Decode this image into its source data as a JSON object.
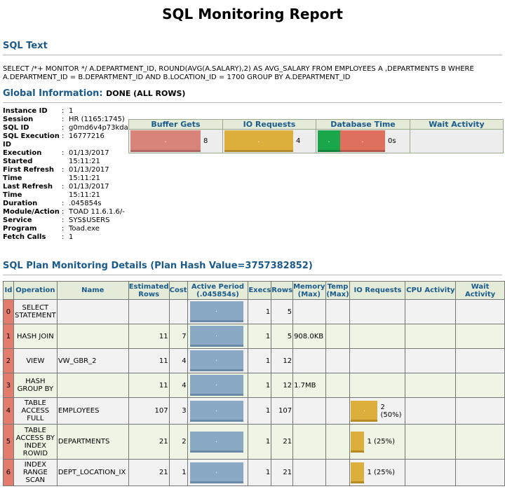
{
  "title": "SQL Monitoring Report",
  "sql_text": {
    "heading": "SQL Text",
    "text": "SELECT /*+ MONITOR */ A.DEPARTMENT_ID, ROUND(AVG(A.SALARY),2) AS AVG_SALARY FROM EMPLOYEES A ,DEPARTMENTS B WHERE A.DEPARTMENT_ID = B.DEPARTMENT_ID AND B.LOCATION_ID = 1700 GROUP BY A.DEPARTMENT_ID"
  },
  "global": {
    "heading": "Global Information:",
    "status": "DONE (ALL ROWS)",
    "rows": [
      {
        "key": "Instance ID",
        "value": "1"
      },
      {
        "key": "Session",
        "value": "HR (1165:1745)"
      },
      {
        "key": "SQL ID",
        "value": "g0md6v4p73kda"
      },
      {
        "key": "SQL Execution ID",
        "value": "16777216"
      },
      {
        "key": "Execution Started",
        "value": "01/13/2017 15:11:21"
      },
      {
        "key": "First Refresh Time",
        "value": "01/13/2017 15:11:21"
      },
      {
        "key": "Last Refresh Time",
        "value": "01/13/2017 15:11:21"
      },
      {
        "key": "Duration",
        "value": ".045854s"
      },
      {
        "key": "Module/Action",
        "value": "TOAD 11.6.1.6/-"
      },
      {
        "key": "Service",
        "value": "SYS$USERS"
      },
      {
        "key": "Program",
        "value": "Toad.exe"
      },
      {
        "key": "Fetch Calls",
        "value": "1"
      }
    ]
  },
  "stats": {
    "headers": [
      "Buffer Gets",
      "IO Requests",
      "Database Time",
      "Wait Activity"
    ],
    "buffer_gets": "8",
    "io_requests": "4",
    "database_time": "0s",
    "bar_mark": "."
  },
  "plan": {
    "heading": "SQL Plan Monitoring Details (Plan Hash Value=3757382852)",
    "headers": {
      "id": "Id",
      "operation": "Operation",
      "name": "Name",
      "est_rows": "Estimated Rows",
      "cost": "Cost",
      "active": "Active Period (.045854s)",
      "execs": "Execs",
      "rows": "Rows",
      "memory": "Memory (Max)",
      "temp": "Temp (Max)",
      "io": "IO Requests",
      "cpu": "CPU Activity",
      "wait": "Wait Activity"
    },
    "rows": [
      {
        "id": "0",
        "op": "SELECT STATEMENT",
        "name": "",
        "est": "",
        "cost": "",
        "execs": "1",
        "rows": "5",
        "mem": "",
        "io": "",
        "io_frac": 0
      },
      {
        "id": "1",
        "op": "HASH JOIN",
        "name": "",
        "est": "11",
        "cost": "7",
        "execs": "1",
        "rows": "5",
        "mem": "908.0KB",
        "io": "",
        "io_frac": 0
      },
      {
        "id": "2",
        "op": "VIEW",
        "name": "VW_GBR_2",
        "est": "11",
        "cost": "4",
        "execs": "1",
        "rows": "12",
        "mem": "",
        "io": "",
        "io_frac": 0
      },
      {
        "id": "3",
        "op": "HASH GROUP BY",
        "name": "",
        "est": "11",
        "cost": "4",
        "execs": "1",
        "rows": "12",
        "mem": "1.7MB",
        "io": "",
        "io_frac": 0
      },
      {
        "id": "4",
        "op": "TABLE ACCESS FULL",
        "name": "EMPLOYEES",
        "est": "107",
        "cost": "3",
        "execs": "1",
        "rows": "107",
        "mem": "",
        "io": "2 (50%)",
        "io_frac": 0.5
      },
      {
        "id": "5",
        "op": "TABLE ACCESS BY INDEX ROWID",
        "name": "DEPARTMENTS",
        "est": "21",
        "cost": "2",
        "execs": "1",
        "rows": "21",
        "mem": "",
        "io": "1 (25%)",
        "io_frac": 0.25
      },
      {
        "id": "6",
        "op": "INDEX RANGE SCAN",
        "name": "DEPT_LOCATION_IX",
        "est": "21",
        "cost": "1",
        "execs": "1",
        "rows": "21",
        "mem": "",
        "io": "1 (25%)",
        "io_frac": 0.25
      }
    ]
  },
  "colors": {
    "heading": "#1a5a8c",
    "buffer_bar": "#d9847a",
    "io_bar": "#dcae3c",
    "db_time_green": "#1aa64a",
    "db_time_red": "#e0705e",
    "active_bar": "#8aa9c4"
  }
}
